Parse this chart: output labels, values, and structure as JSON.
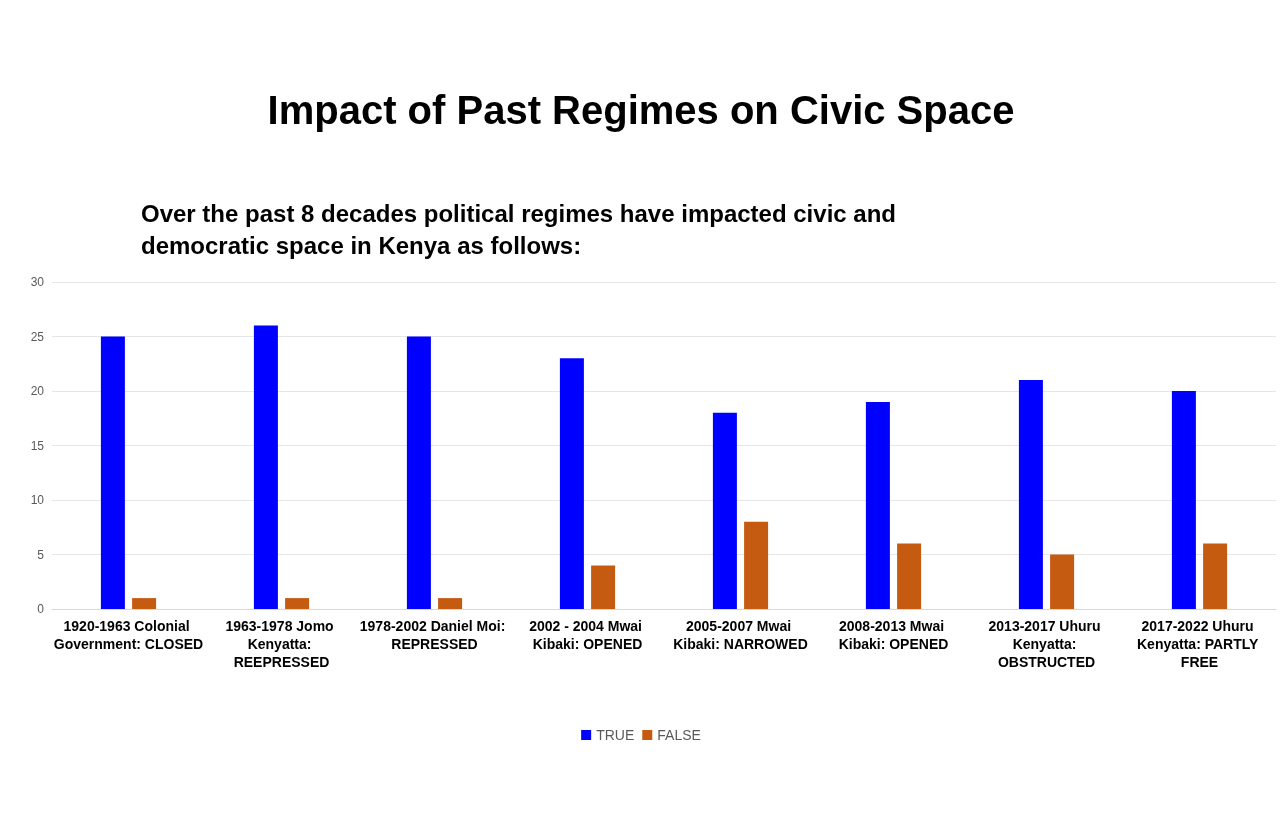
{
  "chart_data": {
    "type": "bar",
    "title": "Impact of Past Regimes on Civic Space",
    "subtitle": "Over the past 8 decades political regimes have impacted civic and democratic space in Kenya as follows:",
    "categories": [
      "1920-1963 Colonial Government: CLOSED",
      "1963-1978 Jomo Kenyatta: REEPRESSED",
      "1978-2002 Daniel Moi: REPRESSED",
      "2002 - 2004 Mwai Kibaki: OPENED",
      "2005-2007 Mwai Kibaki: NARROWED",
      "2008-2013 Mwai Kibaki: OPENED",
      "2013-2017 Uhuru Kenyatta: OBSTRUCTED",
      "2017-2022 Uhuru Kenyatta: PARTLY FREE"
    ],
    "series": [
      {
        "name": "TRUE",
        "color": "#0000ff",
        "values": [
          25,
          26,
          25,
          23,
          18,
          19,
          21,
          20
        ]
      },
      {
        "name": "FALSE",
        "color": "#c55a11",
        "values": [
          1,
          1,
          1,
          4,
          8,
          6,
          5,
          6
        ]
      }
    ],
    "ylim": [
      0,
      30
    ],
    "yticks": [
      0,
      5,
      10,
      15,
      20,
      25,
      30
    ],
    "grid": "y",
    "legend": "bottom"
  }
}
